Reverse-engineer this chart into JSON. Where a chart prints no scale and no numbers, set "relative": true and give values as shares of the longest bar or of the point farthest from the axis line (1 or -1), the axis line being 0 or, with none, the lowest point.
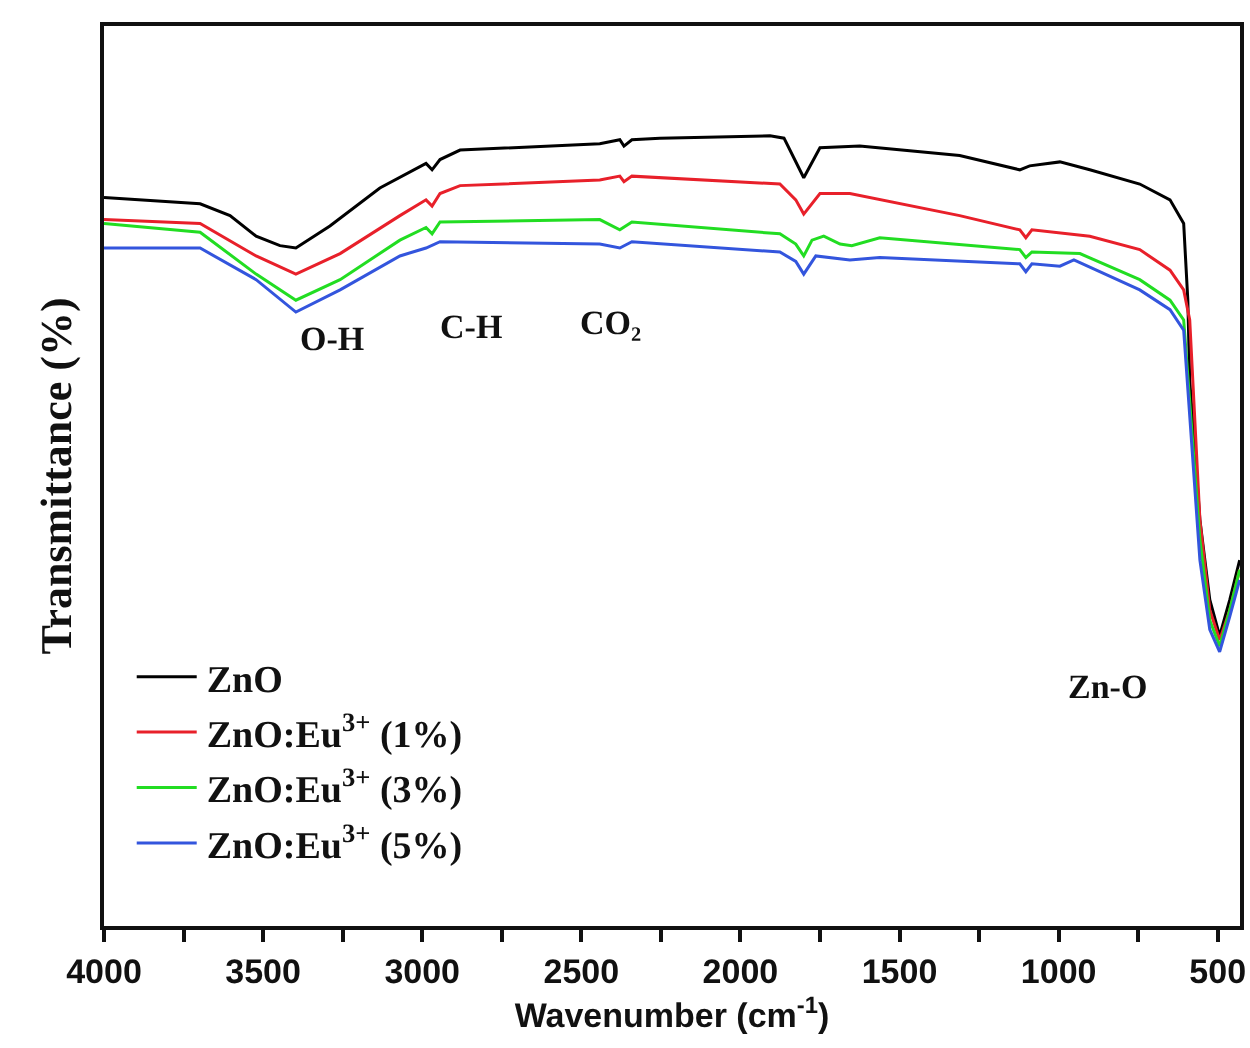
{
  "chart_data": {
    "type": "line",
    "relative": true,
    "xlabel": "Wavenumber (cm$^{-1}$)",
    "ylabel": "Transmittance (%)",
    "xlim": [
      4000,
      430
    ],
    "xticks": [
      4000,
      {
        "value": 3750,
        "label": null
      },
      3500,
      {
        "value": 3250,
        "label": null
      },
      3000,
      {
        "value": 2750,
        "label": null
      },
      2500,
      {
        "value": 2250,
        "label": null
      },
      2000,
      {
        "value": 1750,
        "label": null
      },
      1500,
      {
        "value": 1250,
        "label": null
      },
      1000,
      {
        "value": 750,
        "label": null
      },
      500
    ],
    "grid": false,
    "legend": "bottom left",
    "marker": "none",
    "line_style": "solid",
    "tick_labels": "x",
    "annotations": [
      "O-H",
      "C-H",
      "CO₂",
      "Zn-O"
    ],
    "series": [
      {
        "name": "ZnO",
        "color": "#000000",
        "x": [
          4000,
          3698,
          3604,
          3522,
          3447,
          3397,
          3290,
          3133,
          2988,
          2969,
          2944,
          2881,
          2442,
          2379,
          2366,
          2341,
          2253,
          1907,
          1863,
          1801,
          1750,
          1625,
          1311,
          1122,
          1091,
          996,
          902,
          745,
          650,
          607,
          594,
          588,
          556,
          525,
          494,
          462,
          431
        ],
        "values": [
          0.922,
          0.914,
          0.899,
          0.873,
          0.861,
          0.858,
          0.886,
          0.934,
          0.965,
          0.957,
          0.97,
          0.982,
          0.99,
          0.995,
          0.987,
          0.995,
          0.997,
          1,
          0.997,
          0.947,
          0.985,
          0.987,
          0.975,
          0.957,
          0.962,
          0.967,
          0.957,
          0.939,
          0.919,
          0.889,
          0.792,
          0.691,
          0.514,
          0.413,
          0.367,
          0.413,
          0.463
        ]
      },
      {
        "name": "ZnO:Eu$^{3+}$ (1%)",
        "color": "#e8202a",
        "x": [
          4000,
          3698,
          3522,
          3397,
          3258,
          3070,
          2988,
          2969,
          2944,
          2881,
          2442,
          2379,
          2366,
          2341,
          1876,
          1826,
          1801,
          1750,
          1656,
          1311,
          1122,
          1103,
          1084,
          902,
          745,
          650,
          607,
          588,
          556,
          525,
          494,
          462,
          431
        ],
        "values": [
          0.894,
          0.889,
          0.848,
          0.825,
          0.851,
          0.899,
          0.919,
          0.911,
          0.927,
          0.937,
          0.944,
          0.949,
          0.942,
          0.949,
          0.939,
          0.919,
          0.901,
          0.927,
          0.927,
          0.899,
          0.881,
          0.871,
          0.881,
          0.873,
          0.856,
          0.83,
          0.805,
          0.767,
          0.514,
          0.4,
          0.362,
          0.4,
          0.451
        ]
      },
      {
        "name": "ZnO:Eu$^{3+}$ (3%)",
        "color": "#22dd22",
        "x": [
          4000,
          3698,
          3522,
          3397,
          3258,
          3070,
          2988,
          2969,
          2944,
          2442,
          2379,
          2341,
          1876,
          1826,
          1801,
          1775,
          1738,
          1687,
          1650,
          1562,
          1122,
          1103,
          1084,
          933,
          745,
          650,
          607,
          556,
          525,
          494,
          462,
          431
        ],
        "values": [
          0.889,
          0.878,
          0.825,
          0.792,
          0.818,
          0.868,
          0.884,
          0.876,
          0.891,
          0.894,
          0.881,
          0.891,
          0.876,
          0.863,
          0.848,
          0.868,
          0.873,
          0.863,
          0.861,
          0.871,
          0.856,
          0.846,
          0.853,
          0.851,
          0.818,
          0.792,
          0.767,
          0.489,
          0.387,
          0.354,
          0.4,
          0.451
        ]
      },
      {
        "name": "ZnO:Eu$^{3+}$ (5%)",
        "color": "#3355dd",
        "x": [
          4000,
          3698,
          3522,
          3397,
          3258,
          3070,
          2988,
          2944,
          2442,
          2379,
          2341,
          1876,
          1826,
          1801,
          1763,
          1656,
          1562,
          1122,
          1103,
          1084,
          996,
          952,
          745,
          650,
          607,
          556,
          525,
          494,
          462,
          431
        ],
        "values": [
          0.858,
          0.858,
          0.818,
          0.777,
          0.805,
          0.848,
          0.858,
          0.866,
          0.863,
          0.858,
          0.866,
          0.853,
          0.841,
          0.825,
          0.848,
          0.843,
          0.846,
          0.838,
          0.828,
          0.838,
          0.835,
          0.843,
          0.805,
          0.78,
          0.754,
          0.463,
          0.375,
          0.347,
          0.392,
          0.438
        ]
      }
    ]
  }
}
